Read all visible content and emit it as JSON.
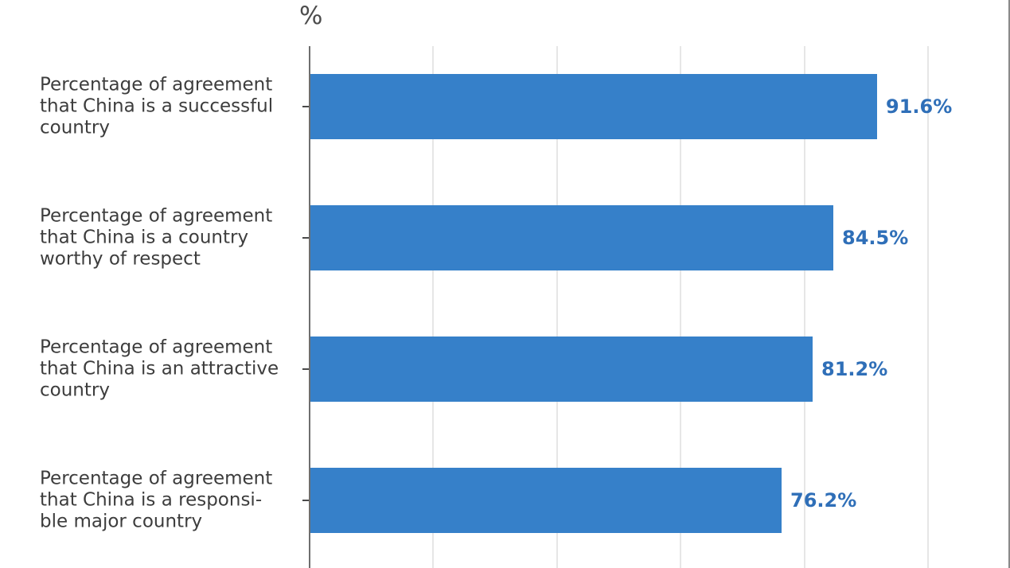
{
  "chart_data": {
    "type": "bar",
    "orientation": "horizontal",
    "title": "",
    "xlabel": "%",
    "unit_label": "%",
    "categories": [
      "Percentage of agreement that China is a successful country",
      "Percentage of agreement that China is a country worthy of respect",
      "Percentage of agreement that China is an attractive country",
      "Percentage of agreement that China is a responsible major country"
    ],
    "category_lines": [
      [
        "Percentage of agreement",
        "that China is a successful",
        "country"
      ],
      [
        "Percentage of agreement",
        "that China is a country",
        "worthy of respect"
      ],
      [
        "Percentage of agreement",
        "that China is an attractive",
        "country"
      ],
      [
        "Percentage of agreement",
        "that China is a responsi-",
        "ble major country"
      ]
    ],
    "values": [
      91.6,
      84.5,
      81.2,
      76.2
    ],
    "value_labels": [
      "91.6%",
      "84.5%",
      "81.2%",
      "76.2%"
    ],
    "xlim": [
      0,
      100
    ],
    "gridline_step": 20,
    "grid": true,
    "legend": false,
    "colors": {
      "bar": "#3680c9",
      "value_label": "#2f6fb8",
      "category_text": "#3d3d3d",
      "unit_label_text": "#4c4c4c",
      "axis_line": "#6e6e6e",
      "tick": "#4a4a4a",
      "gridline": "#e6e6e6",
      "frame_border": "#8a8a8a",
      "background": "#ffffff"
    }
  }
}
